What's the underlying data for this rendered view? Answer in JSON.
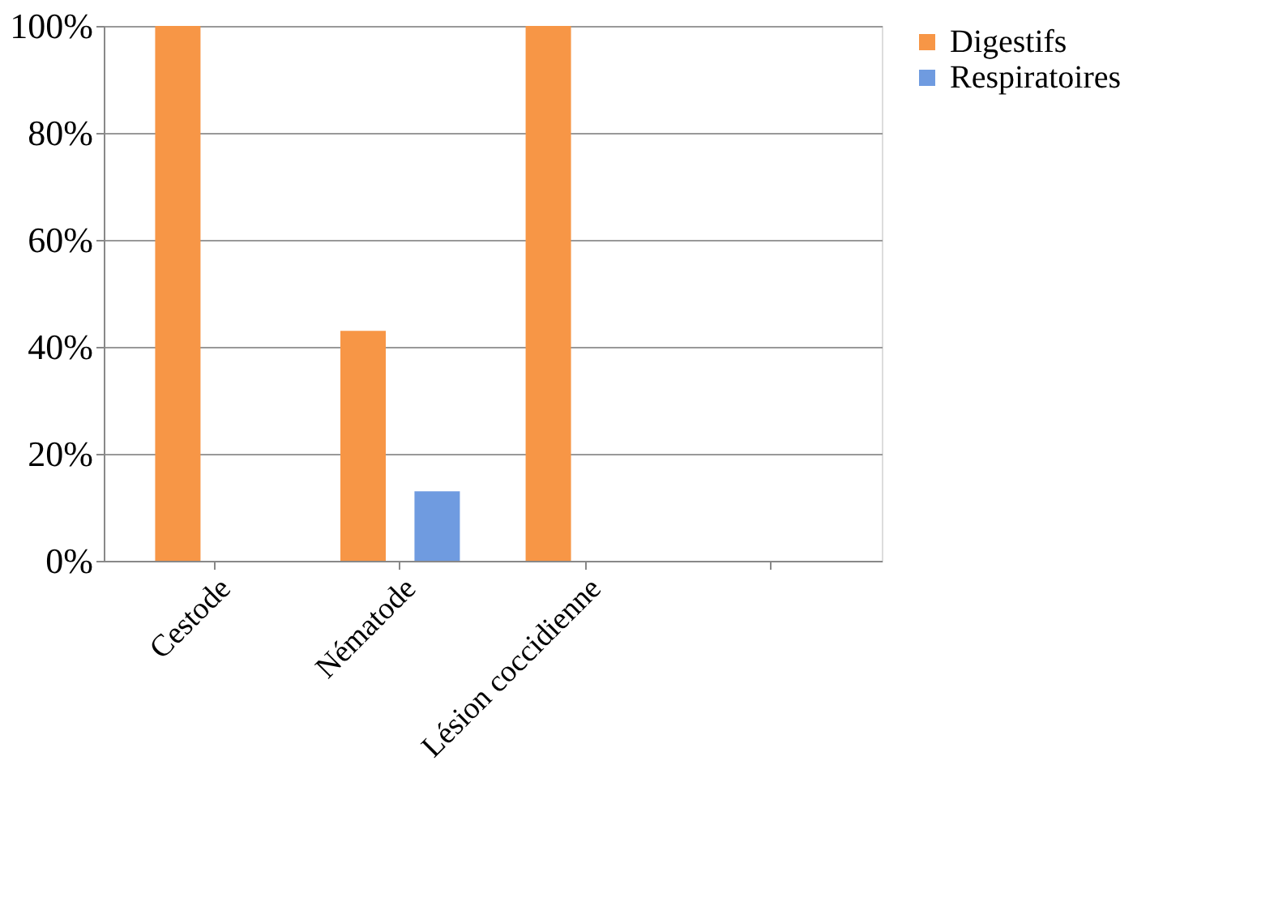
{
  "chart_data": {
    "type": "bar",
    "categories": [
      "Cestode",
      "Nématode",
      "Lésion coccidienne",
      null
    ],
    "series": [
      {
        "name": "Digestifs",
        "color": "#f79646",
        "values": [
          100,
          43,
          100,
          null
        ]
      },
      {
        "name": "Respiratoires",
        "color": "#6f9be0",
        "values": [
          0,
          13,
          0,
          null
        ]
      }
    ],
    "ylim": [
      0,
      100
    ],
    "yticks": [
      {
        "value": 0,
        "label": "0%"
      },
      {
        "value": 20,
        "label": "20%"
      },
      {
        "value": 40,
        "label": "40%"
      },
      {
        "value": 60,
        "label": "60%"
      },
      {
        "value": 80,
        "label": "80%"
      },
      {
        "value": 100,
        "label": "100%"
      }
    ],
    "grid": "y",
    "legend": "right"
  }
}
